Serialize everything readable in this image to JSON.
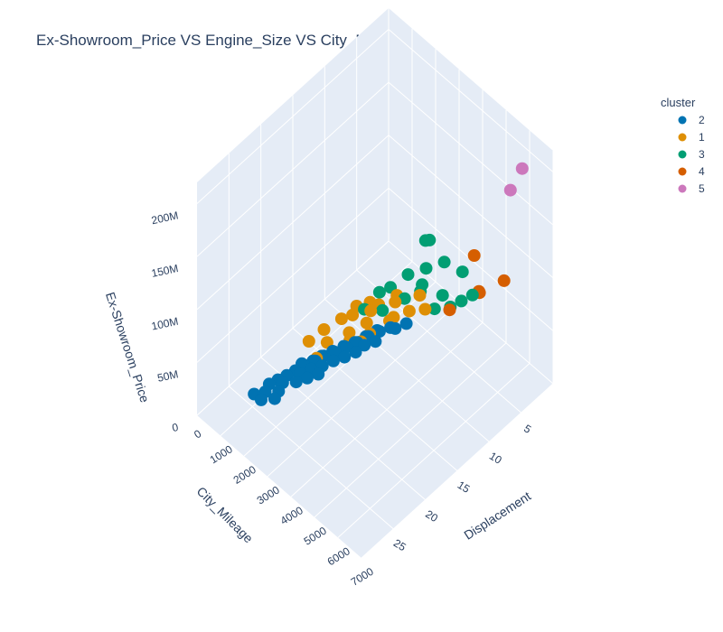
{
  "chart_data": {
    "type": "scatter3d",
    "title": "Ex-Showroom_Price VS Engine_Size VS City_Mileage",
    "axes": {
      "x": {
        "label": "Displacement",
        "range": [
          0,
          7000
        ],
        "ticks": [
          "0",
          "1000",
          "2000",
          "3000",
          "4000",
          "5000",
          "6000",
          "7000"
        ]
      },
      "y": {
        "label": "City_Mileage",
        "range": [
          0,
          30
        ],
        "ticks": [
          "5",
          "10",
          "15",
          "20",
          "25"
        ]
      },
      "z": {
        "label": "Ex-Showroom_Price",
        "range": [
          0,
          220000000
        ],
        "ticks": [
          "0",
          "50M",
          "100M",
          "150M",
          "200M"
        ]
      }
    },
    "legend": {
      "title": "cluster",
      "placement": "top-right",
      "entries": [
        {
          "name": "2",
          "color": "#0173b2"
        },
        {
          "name": "1",
          "color": "#de8f05"
        },
        {
          "name": "3",
          "color": "#029e73"
        },
        {
          "name": "4",
          "color": "#d55e00"
        },
        {
          "name": "5",
          "color": "#cc78bc"
        }
      ]
    },
    "series": [
      {
        "name": "2",
        "color": "#0173b2",
        "points": [
          [
            800,
            24,
            2500000
          ],
          [
            900,
            22,
            3000000
          ],
          [
            1000,
            21,
            3500000
          ],
          [
            1100,
            20,
            4000000
          ],
          [
            1200,
            19,
            5000000
          ],
          [
            1200,
            18,
            6000000
          ],
          [
            1300,
            18,
            6500000
          ],
          [
            1400,
            17,
            7000000
          ],
          [
            1500,
            16,
            8000000
          ],
          [
            1500,
            17,
            9000000
          ],
          [
            1600,
            16,
            10000000
          ],
          [
            1700,
            15,
            11000000
          ],
          [
            1800,
            15,
            12000000
          ],
          [
            1900,
            14,
            14000000
          ],
          [
            2000,
            14,
            15000000
          ],
          [
            2100,
            13,
            16000000
          ],
          [
            2200,
            13,
            18000000
          ],
          [
            2300,
            12,
            20000000
          ],
          [
            2400,
            12,
            22000000
          ],
          [
            2500,
            11,
            24000000
          ],
          [
            2600,
            11,
            25000000
          ],
          [
            2800,
            10,
            27000000
          ],
          [
            3000,
            10,
            30000000
          ],
          [
            3200,
            9,
            33000000
          ],
          [
            1000,
            23,
            3000000
          ],
          [
            1200,
            21,
            4500000
          ],
          [
            1400,
            19,
            6000000
          ],
          [
            1600,
            18,
            8500000
          ],
          [
            1800,
            17,
            10000000
          ],
          [
            2000,
            16,
            13000000
          ],
          [
            2200,
            15,
            15000000
          ],
          [
            2400,
            14,
            18000000
          ],
          [
            1300,
            22,
            3800000
          ],
          [
            1500,
            20,
            5500000
          ],
          [
            1700,
            19,
            7500000
          ],
          [
            1900,
            18,
            9500000
          ],
          [
            1100,
            24,
            2800000
          ],
          [
            1400,
            23,
            4200000
          ],
          [
            2500,
            13,
            21000000
          ],
          [
            2700,
            12,
            23000000
          ]
        ]
      },
      {
        "name": "1",
        "color": "#de8f05",
        "points": [
          [
            2000,
            13,
            40000000
          ],
          [
            2500,
            12,
            48000000
          ],
          [
            3000,
            10,
            55000000
          ],
          [
            1800,
            14,
            38000000
          ],
          [
            2200,
            11,
            45000000
          ],
          [
            2800,
            9,
            52000000
          ],
          [
            3500,
            8,
            60000000
          ],
          [
            1600,
            16,
            35000000
          ],
          [
            2400,
            15,
            42000000
          ],
          [
            3200,
            11,
            50000000
          ],
          [
            2000,
            17,
            36000000
          ],
          [
            2600,
            13,
            44000000
          ],
          [
            3000,
            14,
            47000000
          ],
          [
            4000,
            9,
            62000000
          ],
          [
            1500,
            18,
            33000000
          ],
          [
            1900,
            12,
            41000000
          ],
          [
            2300,
            10,
            39000000
          ],
          [
            2700,
            16,
            46000000
          ],
          [
            3300,
            12,
            54000000
          ],
          [
            2100,
            19,
            34000000
          ],
          [
            3600,
            10,
            58000000
          ],
          [
            2900,
            15,
            43000000
          ]
        ]
      },
      {
        "name": "3",
        "color": "#029e73",
        "points": [
          [
            3000,
            8,
            70000000
          ],
          [
            3500,
            7,
            80000000
          ],
          [
            4000,
            6,
            90000000
          ],
          [
            2800,
            10,
            65000000
          ],
          [
            4500,
            5,
            85000000
          ],
          [
            3800,
            9,
            75000000
          ],
          [
            3200,
            6,
            95000000
          ],
          [
            5000,
            7,
            78000000
          ],
          [
            3600,
            8,
            72000000
          ],
          [
            4200,
            7,
            68000000
          ],
          [
            2600,
            11,
            62000000
          ],
          [
            3400,
            10,
            66000000
          ],
          [
            4800,
            8,
            74000000
          ],
          [
            5200,
            6,
            82000000
          ],
          [
            3000,
            12,
            58000000
          ],
          [
            2500,
            13,
            55000000
          ],
          [
            3100,
            5,
            88000000
          ],
          [
            4400,
            9,
            70000000
          ]
        ]
      },
      {
        "name": "4",
        "color": "#d55e00",
        "points": [
          [
            5000,
            5,
            110000000
          ],
          [
            6000,
            4,
            100000000
          ],
          [
            5500,
            6,
            90000000
          ],
          [
            4500,
            7,
            60000000
          ],
          [
            5200,
            5,
            80000000
          ]
        ]
      },
      {
        "name": "5",
        "color": "#cc78bc",
        "points": [
          [
            6500,
            3,
            210000000
          ],
          [
            6000,
            3,
            180000000
          ]
        ]
      }
    ]
  }
}
